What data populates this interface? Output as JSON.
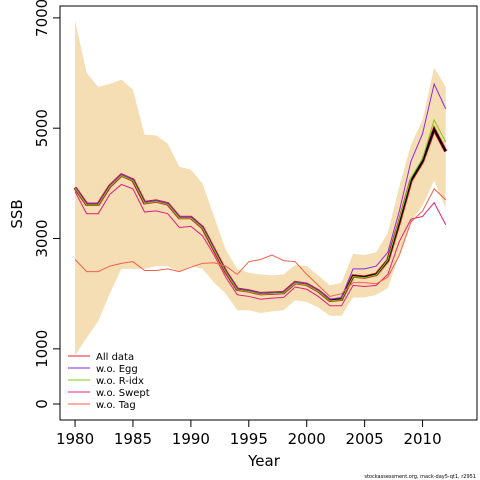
{
  "chart_data": {
    "type": "line",
    "ylabel": "SSB",
    "xlabel": "Year",
    "footer": "stockassessment.org, mack-day5-qt1, r2951",
    "x": [
      1980,
      1981,
      1982,
      1983,
      1984,
      1985,
      1986,
      1987,
      1988,
      1989,
      1990,
      1991,
      1992,
      1993,
      1994,
      1995,
      1996,
      1997,
      1998,
      1999,
      2000,
      2001,
      2002,
      2003,
      2004,
      2005,
      2006,
      2007,
      2008,
      2009,
      2010,
      2011,
      2012
    ],
    "xlim": [
      1978.7,
      2014.7
    ],
    "xticks": [
      1980,
      1985,
      1990,
      1995,
      2000,
      2005,
      2010
    ],
    "ylim": [
      -290,
      7215
    ],
    "yticks": [
      0,
      1000,
      3000,
      5000,
      7000
    ],
    "legend": "bottomleft",
    "main_line_color": "#000000",
    "band": {
      "color": "#f5deb3",
      "upper": [
        6950,
        6000,
        5750,
        5800,
        5880,
        5700,
        4880,
        4870,
        4720,
        4300,
        4250,
        4000,
        3400,
        2800,
        2450,
        2380,
        2350,
        2330,
        2350,
        2520,
        2500,
        2330,
        2150,
        2200,
        2720,
        2700,
        2750,
        3100,
        3950,
        4700,
        5150,
        6100,
        5750
      ],
      "lower": [
        880,
        1200,
        1500,
        2000,
        2450,
        2450,
        2450,
        2500,
        2500,
        2400,
        2500,
        2450,
        2200,
        2000,
        1700,
        1700,
        1650,
        1680,
        1700,
        1880,
        1850,
        1750,
        1600,
        1600,
        1930,
        1930,
        1980,
        2100,
        2700,
        3300,
        3600,
        4050,
        3550
      ]
    },
    "series": [
      {
        "name": "All data",
        "color": "#e8202a",
        "values": [
          3920,
          3620,
          3620,
          3950,
          4150,
          4060,
          3650,
          3680,
          3630,
          3380,
          3380,
          3200,
          2800,
          2400,
          2080,
          2050,
          2000,
          2010,
          2020,
          2200,
          2170,
          2050,
          1880,
          1900,
          2320,
          2300,
          2350,
          2600,
          3300,
          4050,
          4400,
          4980,
          4580
        ]
      },
      {
        "name": "w.o. Egg",
        "color": "#8a2be2",
        "values": [
          3930,
          3630,
          3630,
          3960,
          4160,
          4070,
          3660,
          3690,
          3640,
          3390,
          3390,
          3210,
          2810,
          2410,
          2090,
          2060,
          2010,
          2020,
          2030,
          2210,
          2180,
          2060,
          1900,
          1930,
          2450,
          2450,
          2500,
          2750,
          3500,
          4400,
          4900,
          5800,
          5350
        ]
      },
      {
        "name": "w.o. R-idx",
        "color": "#7fd000",
        "values": [
          3910,
          3610,
          3610,
          3940,
          4140,
          4050,
          3640,
          3670,
          3620,
          3370,
          3370,
          3190,
          2790,
          2390,
          2070,
          2040,
          1990,
          2000,
          2010,
          2190,
          2160,
          2040,
          1870,
          1890,
          2310,
          2290,
          2340,
          2610,
          3350,
          4100,
          4450,
          5150,
          4750
        ]
      },
      {
        "name": "w.o. Swept",
        "color": "#e0207a",
        "values": [
          3850,
          3450,
          3450,
          3800,
          3980,
          3900,
          3480,
          3500,
          3450,
          3200,
          3220,
          3050,
          2700,
          2300,
          1980,
          1950,
          1900,
          1920,
          1930,
          2120,
          2080,
          1950,
          1780,
          1780,
          2150,
          2130,
          2150,
          2350,
          2950,
          3350,
          3400,
          3650,
          3250
        ]
      },
      {
        "name": "w.o. Tag",
        "color": "#f4604a",
        "values": [
          2620,
          2400,
          2400,
          2500,
          2550,
          2580,
          2420,
          2420,
          2450,
          2400,
          2480,
          2550,
          2560,
          2500,
          2350,
          2580,
          2620,
          2700,
          2600,
          2580,
          2350,
          2150,
          1950,
          2000,
          2200,
          2200,
          2180,
          2300,
          2700,
          3300,
          3500,
          3900,
          3700
        ]
      }
    ]
  }
}
